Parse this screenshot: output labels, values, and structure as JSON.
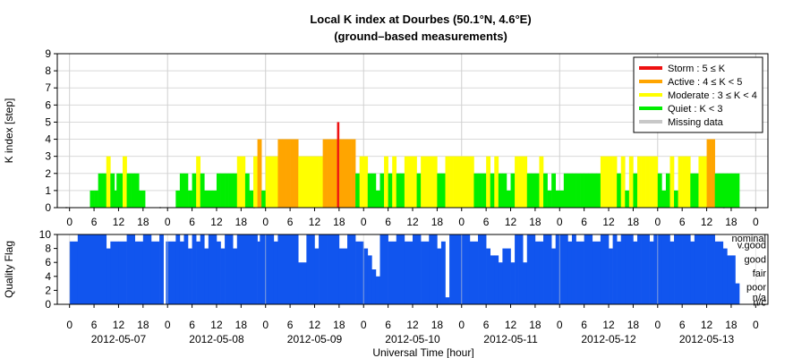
{
  "title_line1": "Local K index at Dourbes (50.1°N, 4.6°E)",
  "title_line2": "(ground–based measurements)",
  "chart_data": [
    {
      "type": "bar",
      "name": "k-index",
      "ylabel": "K index [step]",
      "ylim": [
        0,
        9
      ],
      "yticks": [
        "0",
        "1",
        "2",
        "3",
        "4",
        "5",
        "6",
        "7",
        "8",
        "9"
      ],
      "x_unit": "hours since 2012-05-07 00:00 UT",
      "xlim": [
        -3,
        171
      ],
      "legend_position": "top-right",
      "legend": [
        {
          "key": "storm",
          "label": "Storm : 5 ≤ K",
          "color": "#ee1111"
        },
        {
          "key": "active",
          "label": "Active : 4 ≤ K < 5",
          "color": "#ffa500"
        },
        {
          "key": "moderate",
          "label": "Moderate : 3 ≤ K < 4",
          "color": "#ffff00"
        },
        {
          "key": "quiet",
          "label": "Quiet : K < 3",
          "color": "#00ee00"
        },
        {
          "key": "missing",
          "label": "Missing data",
          "color": "#c8c8c8"
        }
      ],
      "bars": [
        [
          5,
          6,
          1
        ],
        [
          6,
          7,
          1
        ],
        [
          7,
          8,
          2
        ],
        [
          8,
          9,
          2
        ],
        [
          9,
          9.5,
          3
        ],
        [
          9.5,
          10,
          3
        ],
        [
          10,
          11,
          2
        ],
        [
          11,
          11.5,
          1
        ],
        [
          11.5,
          12,
          2
        ],
        [
          12,
          13,
          2
        ],
        [
          13,
          14,
          3
        ],
        [
          14,
          15,
          2
        ],
        [
          15,
          16,
          2
        ],
        [
          16,
          17,
          2
        ],
        [
          17,
          18,
          1
        ],
        [
          18,
          18.5,
          1
        ],
        [
          26,
          27,
          1
        ],
        [
          27,
          28,
          2
        ],
        [
          28,
          29,
          2
        ],
        [
          29,
          30,
          1
        ],
        [
          30,
          31,
          2
        ],
        [
          31,
          32,
          3
        ],
        [
          32,
          33,
          2
        ],
        [
          33,
          34,
          1
        ],
        [
          34,
          35,
          1
        ],
        [
          35,
          36,
          1
        ],
        [
          36,
          37,
          2
        ],
        [
          37,
          38,
          2
        ],
        [
          38,
          39,
          2
        ],
        [
          39,
          40,
          2
        ],
        [
          40,
          41,
          2
        ],
        [
          41,
          42,
          3
        ],
        [
          42,
          43,
          3
        ],
        [
          43,
          44,
          2
        ],
        [
          44,
          45,
          1
        ],
        [
          45,
          46,
          3
        ],
        [
          46,
          47,
          4
        ],
        [
          47,
          48,
          1
        ],
        [
          48,
          49,
          3
        ],
        [
          49,
          50,
          3
        ],
        [
          50,
          51,
          3
        ],
        [
          51,
          52,
          4
        ],
        [
          52,
          53,
          4
        ],
        [
          53,
          54,
          4
        ],
        [
          54,
          55,
          4
        ],
        [
          55,
          56,
          4
        ],
        [
          56,
          57,
          3
        ],
        [
          57,
          58,
          3
        ],
        [
          58,
          59,
          3
        ],
        [
          59,
          60,
          3
        ],
        [
          60,
          61,
          3
        ],
        [
          61,
          62,
          3
        ],
        [
          62,
          63,
          4
        ],
        [
          63,
          64,
          4
        ],
        [
          64,
          65,
          4
        ],
        [
          65,
          65.5,
          4
        ],
        [
          65.5,
          66,
          5
        ],
        [
          66,
          67,
          4
        ],
        [
          67,
          68,
          4
        ],
        [
          68,
          69,
          4
        ],
        [
          69,
          70,
          4
        ],
        [
          70,
          71,
          2
        ],
        [
          71,
          72,
          3
        ],
        [
          72,
          73,
          3
        ],
        [
          73,
          74,
          2
        ],
        [
          74,
          75,
          2
        ],
        [
          75,
          76,
          1
        ],
        [
          76,
          77,
          2
        ],
        [
          77,
          78,
          3
        ],
        [
          78,
          79,
          2
        ],
        [
          79,
          80,
          3
        ],
        [
          80,
          81,
          2
        ],
        [
          81,
          82,
          2
        ],
        [
          82,
          83,
          3
        ],
        [
          83,
          84,
          3
        ],
        [
          84,
          85,
          3
        ],
        [
          85,
          86,
          2
        ],
        [
          86,
          87,
          3
        ],
        [
          87,
          88,
          3
        ],
        [
          88,
          89,
          3
        ],
        [
          89,
          90,
          3
        ],
        [
          90,
          91,
          2
        ],
        [
          91,
          92,
          2
        ],
        [
          92,
          93,
          3
        ],
        [
          93,
          94,
          3
        ],
        [
          94,
          95,
          3
        ],
        [
          95,
          96,
          3
        ],
        [
          96,
          97,
          3
        ],
        [
          97,
          98,
          3
        ],
        [
          98,
          99,
          3
        ],
        [
          99,
          100,
          2
        ],
        [
          100,
          101,
          2
        ],
        [
          101,
          102,
          2
        ],
        [
          102,
          103,
          3
        ],
        [
          103,
          104,
          2
        ],
        [
          104,
          105,
          3
        ],
        [
          105,
          106,
          2
        ],
        [
          106,
          107,
          2
        ],
        [
          107,
          108,
          1
        ],
        [
          108,
          109,
          2
        ],
        [
          109,
          110,
          3
        ],
        [
          110,
          111,
          3
        ],
        [
          111,
          112,
          3
        ],
        [
          112,
          113,
          2
        ],
        [
          113,
          114,
          2
        ],
        [
          114,
          115,
          2
        ],
        [
          115,
          116,
          3
        ],
        [
          116,
          117,
          2
        ],
        [
          117,
          118,
          1
        ],
        [
          118,
          119,
          2
        ],
        [
          119,
          120,
          1
        ],
        [
          120,
          121,
          1
        ],
        [
          121,
          122,
          2
        ],
        [
          122,
          123,
          2
        ],
        [
          123,
          124,
          2
        ],
        [
          124,
          125,
          2
        ],
        [
          125,
          126,
          2
        ],
        [
          126,
          127,
          2
        ],
        [
          127,
          128,
          2
        ],
        [
          128,
          129,
          2
        ],
        [
          129,
          130,
          2
        ],
        [
          130,
          131,
          3
        ],
        [
          131,
          132,
          3
        ],
        [
          132,
          133,
          3
        ],
        [
          133,
          134,
          3
        ],
        [
          134,
          135,
          2
        ],
        [
          135,
          136,
          3
        ],
        [
          136,
          137,
          1
        ],
        [
          137,
          138,
          3
        ],
        [
          138,
          139,
          2
        ],
        [
          139,
          140,
          3
        ],
        [
          140,
          141,
          3
        ],
        [
          141,
          142,
          3
        ],
        [
          142,
          143,
          3
        ],
        [
          143,
          144,
          3
        ],
        [
          144,
          145,
          2
        ],
        [
          145,
          146,
          1
        ],
        [
          146,
          147,
          2
        ],
        [
          147,
          148,
          3
        ],
        [
          148,
          149,
          1
        ],
        [
          149,
          150,
          3
        ],
        [
          150,
          151,
          3
        ],
        [
          151,
          152,
          3
        ],
        [
          152,
          153,
          2
        ],
        [
          153,
          154,
          2
        ],
        [
          154,
          155,
          3
        ],
        [
          155,
          156,
          3
        ],
        [
          156,
          157,
          4
        ],
        [
          157,
          158,
          4
        ],
        [
          158,
          159,
          2
        ],
        [
          159,
          160,
          2
        ],
        [
          160,
          161,
          2
        ],
        [
          161,
          162,
          2
        ],
        [
          162,
          163,
          2
        ],
        [
          163,
          164,
          2
        ]
      ],
      "missing": [
        [
          -1,
          -0.5
        ],
        [
          22,
          22.4
        ],
        [
          45,
          45.4
        ],
        [
          90,
          90.4
        ],
        [
          114,
          114.4
        ],
        [
          137,
          137.4
        ],
        [
          160,
          160.4
        ]
      ]
    },
    {
      "type": "bar",
      "name": "quality-flag",
      "ylabel": "Quality Flag",
      "ylim": [
        0,
        10
      ],
      "yticks": [
        "0",
        "2",
        "4",
        "6",
        "8",
        "10"
      ],
      "quality_levels": [
        {
          "value": 9.5,
          "label": "nominal"
        },
        {
          "value": 8.5,
          "label": "v.good"
        },
        {
          "value": 6.5,
          "label": "good"
        },
        {
          "value": 4.5,
          "label": "fair"
        },
        {
          "value": 2.5,
          "label": "poor"
        },
        {
          "value": 1.0,
          "label": "n/a"
        },
        {
          "value": 0.3,
          "label": "n/c"
        }
      ],
      "color": "#1155ee",
      "x_ticks": [
        "0",
        "6",
        "12",
        "18",
        "0",
        "6",
        "12",
        "18",
        "0",
        "6",
        "12",
        "18",
        "0",
        "6",
        "12",
        "18",
        "0",
        "6",
        "12",
        "18",
        "0",
        "6",
        "12",
        "18",
        "0",
        "6",
        "12",
        "18",
        "0"
      ],
      "x_tick_hours": [
        0,
        6,
        12,
        18,
        24,
        30,
        36,
        42,
        48,
        54,
        60,
        66,
        72,
        78,
        84,
        90,
        96,
        102,
        108,
        114,
        120,
        126,
        132,
        138,
        144,
        150,
        156,
        162,
        168
      ],
      "dates": [
        "2012-05-07",
        "2012-05-08",
        "2012-05-09",
        "2012-05-10",
        "2012-05-11",
        "2012-05-12",
        "2012-05-13"
      ],
      "date_hours": [
        12,
        36,
        60,
        84,
        108,
        132,
        156
      ],
      "xlabel": "Universal Time [hour]",
      "bars": [
        [
          0,
          2,
          9
        ],
        [
          2,
          9,
          10
        ],
        [
          9,
          10,
          8
        ],
        [
          10,
          12,
          9
        ],
        [
          12,
          14,
          9
        ],
        [
          14,
          16,
          10
        ],
        [
          16,
          18,
          9
        ],
        [
          18,
          20,
          10
        ],
        [
          20,
          22,
          9
        ],
        [
          22,
          23,
          10
        ],
        [
          23,
          23.6,
          0
        ],
        [
          23.6,
          26,
          9
        ],
        [
          26,
          27,
          10
        ],
        [
          27,
          28,
          9
        ],
        [
          28,
          29,
          10
        ],
        [
          29,
          30,
          8
        ],
        [
          30,
          31,
          10
        ],
        [
          31,
          32,
          9
        ],
        [
          32,
          33,
          10
        ],
        [
          33,
          34,
          8
        ],
        [
          34,
          36,
          10
        ],
        [
          36,
          37,
          9
        ],
        [
          37,
          38,
          8
        ],
        [
          38,
          40,
          10
        ],
        [
          40,
          41,
          8
        ],
        [
          41,
          44,
          10
        ],
        [
          44,
          46,
          10
        ],
        [
          46,
          46.6,
          9
        ],
        [
          46.6,
          50,
          10
        ],
        [
          50,
          51,
          9
        ],
        [
          51,
          56,
          10
        ],
        [
          56,
          58,
          6
        ],
        [
          58,
          60,
          10
        ],
        [
          60,
          61,
          8
        ],
        [
          61,
          63,
          10
        ],
        [
          63,
          66,
          10
        ],
        [
          66,
          68,
          8
        ],
        [
          68,
          70,
          10
        ],
        [
          70,
          72,
          9
        ],
        [
          72,
          73,
          8
        ],
        [
          73,
          74,
          7
        ],
        [
          74,
          75,
          5
        ],
        [
          75,
          76,
          4
        ],
        [
          76,
          78,
          10
        ],
        [
          78,
          80,
          9
        ],
        [
          80,
          82,
          10
        ],
        [
          82,
          84,
          9
        ],
        [
          84,
          86,
          10
        ],
        [
          86,
          88,
          9
        ],
        [
          88,
          90,
          10
        ],
        [
          90,
          91,
          8
        ],
        [
          91,
          92,
          9
        ],
        [
          92,
          93,
          1
        ],
        [
          93,
          96,
          10
        ],
        [
          96,
          98,
          10
        ],
        [
          98,
          100,
          9
        ],
        [
          100,
          102,
          10
        ],
        [
          102,
          103,
          8
        ],
        [
          103,
          104,
          7
        ],
        [
          104,
          105,
          7
        ],
        [
          105,
          106,
          6
        ],
        [
          106,
          108,
          8
        ],
        [
          108,
          109,
          6
        ],
        [
          109,
          110,
          10
        ],
        [
          110,
          111,
          10
        ],
        [
          111,
          112,
          6
        ],
        [
          112,
          114,
          10
        ],
        [
          114,
          115,
          9
        ],
        [
          115,
          116,
          9
        ],
        [
          116,
          118,
          10
        ],
        [
          118,
          119,
          8
        ],
        [
          119,
          120,
          10
        ],
        [
          120,
          122,
          10
        ],
        [
          122,
          123,
          9
        ],
        [
          123,
          124,
          10
        ],
        [
          124,
          126,
          9
        ],
        [
          126,
          128,
          10
        ],
        [
          128,
          130,
          9
        ],
        [
          130,
          132,
          10
        ],
        [
          132,
          133,
          8
        ],
        [
          133,
          134,
          10
        ],
        [
          134,
          135,
          9
        ],
        [
          135,
          136,
          10
        ],
        [
          136,
          138,
          10
        ],
        [
          138,
          139,
          9
        ],
        [
          139,
          140,
          10
        ],
        [
          140,
          142,
          10
        ],
        [
          142,
          143,
          9
        ],
        [
          143,
          145,
          10
        ],
        [
          145,
          147,
          10
        ],
        [
          147,
          148,
          9
        ],
        [
          148,
          150,
          10
        ],
        [
          150,
          152,
          10
        ],
        [
          152,
          153,
          9
        ],
        [
          153,
          156,
          10
        ],
        [
          156,
          158,
          10
        ],
        [
          158,
          160,
          9
        ],
        [
          160,
          161,
          8
        ],
        [
          161,
          163,
          7
        ],
        [
          163,
          164,
          3
        ]
      ],
      "gaps": [
        [
          -1,
          -0.6
        ],
        [
          23,
          23.4
        ],
        [
          47.6,
          48
        ],
        [
          96,
          96.3
        ],
        [
          108,
          108.4
        ],
        [
          144,
          144.3
        ]
      ]
    }
  ]
}
